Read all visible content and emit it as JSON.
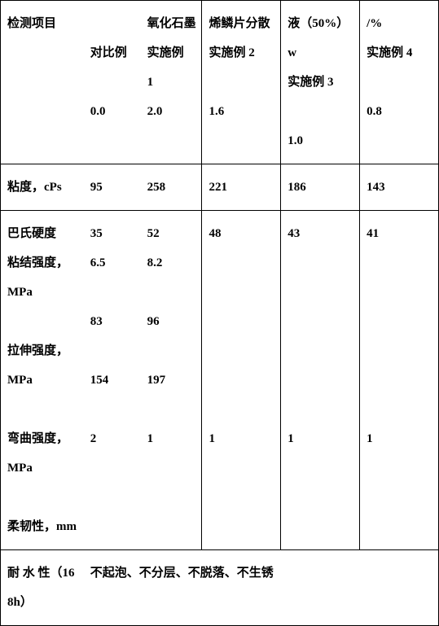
{
  "header": {
    "row_label": "检测项目",
    "group_title": "氧化石墨烯鳞片分散液（50%）w/%",
    "columns": [
      "对比例",
      "实施例1",
      "实施例 2",
      "实施例 3",
      "实施例 4"
    ],
    "values": [
      "0.0",
      "2.0",
      "1.6",
      "1.0",
      "0.8"
    ]
  },
  "viscosity": {
    "label": "粘度，cPs",
    "cells": [
      "95",
      "258",
      "221",
      "186",
      "143"
    ]
  },
  "mechanical": {
    "labels": [
      "巴氏硬度",
      "粘结强度，MPa",
      "拉伸强度，MPa",
      "弯曲强度，MPa",
      "柔韧性，mm"
    ],
    "col1": [
      "35",
      "6.5",
      "83",
      "154",
      "2"
    ],
    "col2": [
      "52",
      "8.2",
      "96",
      "197",
      "1"
    ],
    "col3": [
      "48",
      "",
      "",
      "",
      "1"
    ],
    "col4": [
      "43",
      "",
      "",
      "",
      "1"
    ],
    "col5": [
      "41",
      "",
      "",
      "",
      "1"
    ]
  },
  "water": {
    "label": "耐 水 性（168h）",
    "value": "不起泡、不分层、不脱落、不生锈"
  }
}
